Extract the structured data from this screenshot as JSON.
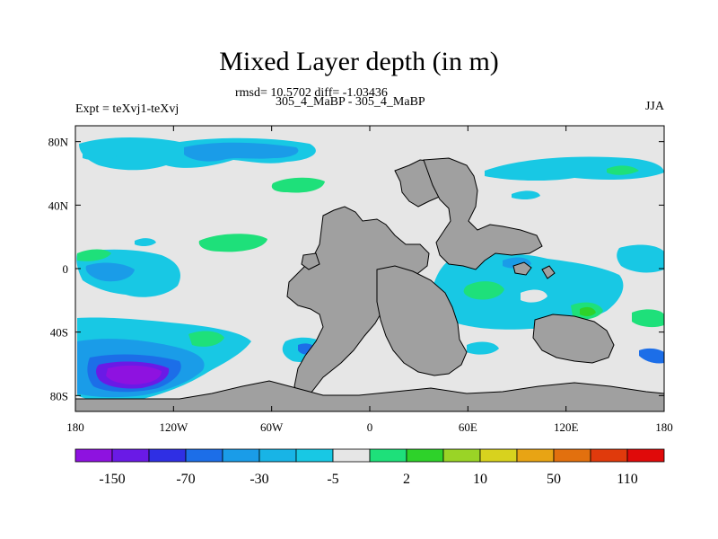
{
  "chart_data": {
    "type": "heatmap",
    "title": "Mixed Layer depth (in m)",
    "stats_text": "rmsd= 10.5702 diff= -1.03436",
    "subtitle": "305_4_MaBP - 305_4_MaBP",
    "left_label": "Expt = teXvj1-teXvj",
    "right_label": "JJA",
    "x_axis": {
      "range": [
        -180,
        180
      ],
      "ticks": [
        -180,
        -120,
        -60,
        0,
        60,
        120,
        180
      ],
      "tick_labels": [
        "180",
        "120W",
        "60W",
        "0",
        "60E",
        "120E",
        "180"
      ]
    },
    "y_axis": {
      "range": [
        -90,
        90
      ],
      "ticks": [
        80,
        40,
        0,
        -40,
        -80
      ],
      "tick_labels": [
        "80N",
        "40N",
        "0",
        "40S",
        "80S"
      ]
    },
    "land_color": "#a0a0a0",
    "background_color": "#e6e6e6",
    "colorbar": {
      "colors": [
        "#8e12e0",
        "#6a1ae6",
        "#2f2fe4",
        "#1c6ee8",
        "#1a9ce8",
        "#18b4e6",
        "#18c8e4",
        "#e6e6e6",
        "#1ee07a",
        "#2ed22a",
        "#9ad426",
        "#d8d21e",
        "#e8a414",
        "#e2700e",
        "#e03a0c",
        "#e00a0a"
      ],
      "boundaries": [
        -150,
        -110,
        -70,
        -50,
        -30,
        -10,
        -5,
        -2,
        2,
        5,
        10,
        30,
        50,
        70,
        110,
        150
      ],
      "labels": [
        "-150",
        "-70",
        "-30",
        "-5",
        "2",
        "10",
        "50",
        "110"
      ]
    },
    "regions": [
      {
        "name": "arctic-cyan",
        "lon": -110,
        "lat": 74,
        "value": -5
      },
      {
        "name": "arctic-light",
        "lon": -152,
        "lat": 72,
        "value": -3
      },
      {
        "name": "north-atlantic-green",
        "lon": -70,
        "lat": 52,
        "value": 4
      },
      {
        "name": "north-pacific-cyan",
        "lon": 90,
        "lat": 57,
        "value": -5
      },
      {
        "name": "equatorial-pacific-green",
        "lon": -135,
        "lat": 13,
        "value": 4
      },
      {
        "name": "southern-ocean-purple",
        "lon": -145,
        "lat": -66,
        "value": -150
      },
      {
        "name": "southern-ocean-blue",
        "lon": -150,
        "lat": -58,
        "value": -30
      },
      {
        "name": "indian-ocean-green",
        "lon": 75,
        "lat": -20,
        "value": 4
      },
      {
        "name": "southwest-pacific-yellow-green",
        "lon": 140,
        "lat": -27,
        "value": 8
      }
    ]
  }
}
